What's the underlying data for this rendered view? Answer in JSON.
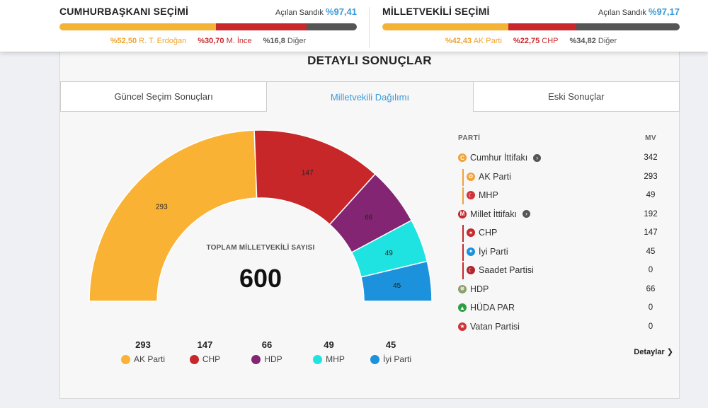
{
  "presidential": {
    "title": "CUMHURBAŞKANI SEÇİMİ",
    "open_label": "Açılan Sandık",
    "open_pct": "%97,41",
    "segments": [
      {
        "pct_label": "%52,50",
        "name": "R. T. Erdoğan",
        "value": 52.5,
        "color": "#f5b335",
        "label_color": "#f0a32e"
      },
      {
        "pct_label": "%30,70",
        "name": "M. İnce",
        "value": 30.7,
        "color": "#c8282c",
        "label_color": "#c8282c"
      },
      {
        "pct_label": "%16,8",
        "name": "Diğer",
        "value": 16.8,
        "color": "#555555",
        "label_color": "#555555"
      }
    ]
  },
  "parliamentary": {
    "title": "MİLLETVEKİLİ SEÇİMİ",
    "open_label": "Açılan Sandık",
    "open_pct": "%97,17",
    "segments": [
      {
        "pct_label": "%42,43",
        "name": "AK Parti",
        "value": 42.43,
        "color": "#f5b335",
        "label_color": "#f0a32e"
      },
      {
        "pct_label": "%22,75",
        "name": "CHP",
        "value": 22.75,
        "color": "#c8282c",
        "label_color": "#c8282c"
      },
      {
        "pct_label": "%34,82",
        "name": "Diğer",
        "value": 34.82,
        "color": "#555555",
        "label_color": "#555555"
      }
    ]
  },
  "panel": {
    "title": "DETAYLI SONUÇLAR",
    "tabs": [
      "Güncel Seçim Sonuçları",
      "Milletvekili Dağılımı",
      "Eski Sonuçlar"
    ]
  },
  "chart_data": {
    "type": "pie",
    "subtype": "semicircle-donut",
    "center_label": "TOPLAM MİLLETVEKİLİ SAYISI",
    "total": "600",
    "categories": [
      "AK Parti",
      "CHP",
      "HDP",
      "MHP",
      "İyi Parti"
    ],
    "values": [
      293,
      147,
      66,
      49,
      45
    ],
    "colors": [
      "#f9b233",
      "#c8272a",
      "#832573",
      "#1fe3e1",
      "#1c92dc"
    ]
  },
  "table": {
    "header_party": "PARTİ",
    "header_mv": "MV",
    "rows": [
      {
        "name": "Cumhur İttifakı",
        "mv": "342",
        "kind": "alliance",
        "icon": "cumhur-alliance-icon",
        "icon_color": "#f2a23a",
        "icon_char": "C"
      },
      {
        "name": "AK Parti",
        "mv": "293",
        "kind": "sub",
        "group": "cumhur",
        "icon": "ak-parti-icon",
        "icon_color": "#f2a23a",
        "icon_char": "✿"
      },
      {
        "name": "MHP",
        "mv": "49",
        "kind": "sub",
        "group": "cumhur",
        "icon": "mhp-icon",
        "icon_color": "#d0333a",
        "icon_char": "☾"
      },
      {
        "name": "Millet İttifakı",
        "mv": "192",
        "kind": "alliance",
        "icon": "millet-alliance-icon",
        "icon_color": "#c8282c",
        "icon_char": "M"
      },
      {
        "name": "CHP",
        "mv": "147",
        "kind": "sub",
        "group": "millet",
        "icon": "chp-icon",
        "icon_color": "#c8282c",
        "icon_char": "✶"
      },
      {
        "name": "İyi Parti",
        "mv": "45",
        "kind": "sub",
        "group": "millet",
        "icon": "iyi-parti-icon",
        "icon_color": "#1c92dc",
        "icon_char": "✦"
      },
      {
        "name": "Saadet Partisi",
        "mv": "0",
        "kind": "sub",
        "group": "millet",
        "icon": "saadet-icon",
        "icon_color": "#b3262a",
        "icon_char": "☾"
      },
      {
        "name": "HDP",
        "mv": "66",
        "kind": "party",
        "icon": "hdp-icon",
        "icon_color": "#8aa06a",
        "icon_char": "❋"
      },
      {
        "name": "HÜDA PAR",
        "mv": "0",
        "kind": "party",
        "icon": "huda-par-icon",
        "icon_color": "#2e9e45",
        "icon_char": "▲"
      },
      {
        "name": "Vatan Partisi",
        "mv": "0",
        "kind": "party",
        "icon": "vatan-icon",
        "icon_color": "#d0333a",
        "icon_char": "★"
      }
    ],
    "details_label": "Detaylar"
  }
}
